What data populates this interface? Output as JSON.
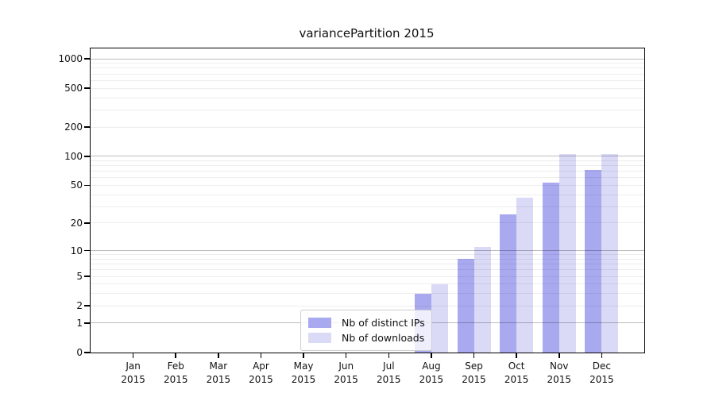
{
  "chart_data": {
    "type": "bar",
    "title": "variancePartition 2015",
    "categories": [
      "Jan",
      "Feb",
      "Mar",
      "Apr",
      "May",
      "Jun",
      "Jul",
      "Aug",
      "Sep",
      "Oct",
      "Nov",
      "Dec"
    ],
    "x_year_label": "2015",
    "series": [
      {
        "name": "Nb of distinct IPs",
        "color": "#a9a9f0",
        "values": [
          0,
          0,
          0,
          0,
          0,
          0,
          0,
          3,
          8,
          25,
          53,
          72
        ]
      },
      {
        "name": "Nb of downloads",
        "color": "#dadaf7",
        "values": [
          0,
          0,
          0,
          0,
          0,
          0,
          0,
          4,
          11,
          37,
          105,
          105
        ]
      }
    ],
    "y_scale": "log10(1+x)",
    "y_tick_labels": [
      1000,
      500,
      200,
      100,
      50,
      20,
      10,
      5,
      2,
      1,
      0
    ],
    "y_major_gridlines": [
      1,
      10,
      100,
      1000
    ],
    "ylim": [
      0,
      1276
    ],
    "grid": "horizontal major+minor (log decades)",
    "legend_position": "inside bottom-center",
    "xlabel": "",
    "ylabel": ""
  }
}
